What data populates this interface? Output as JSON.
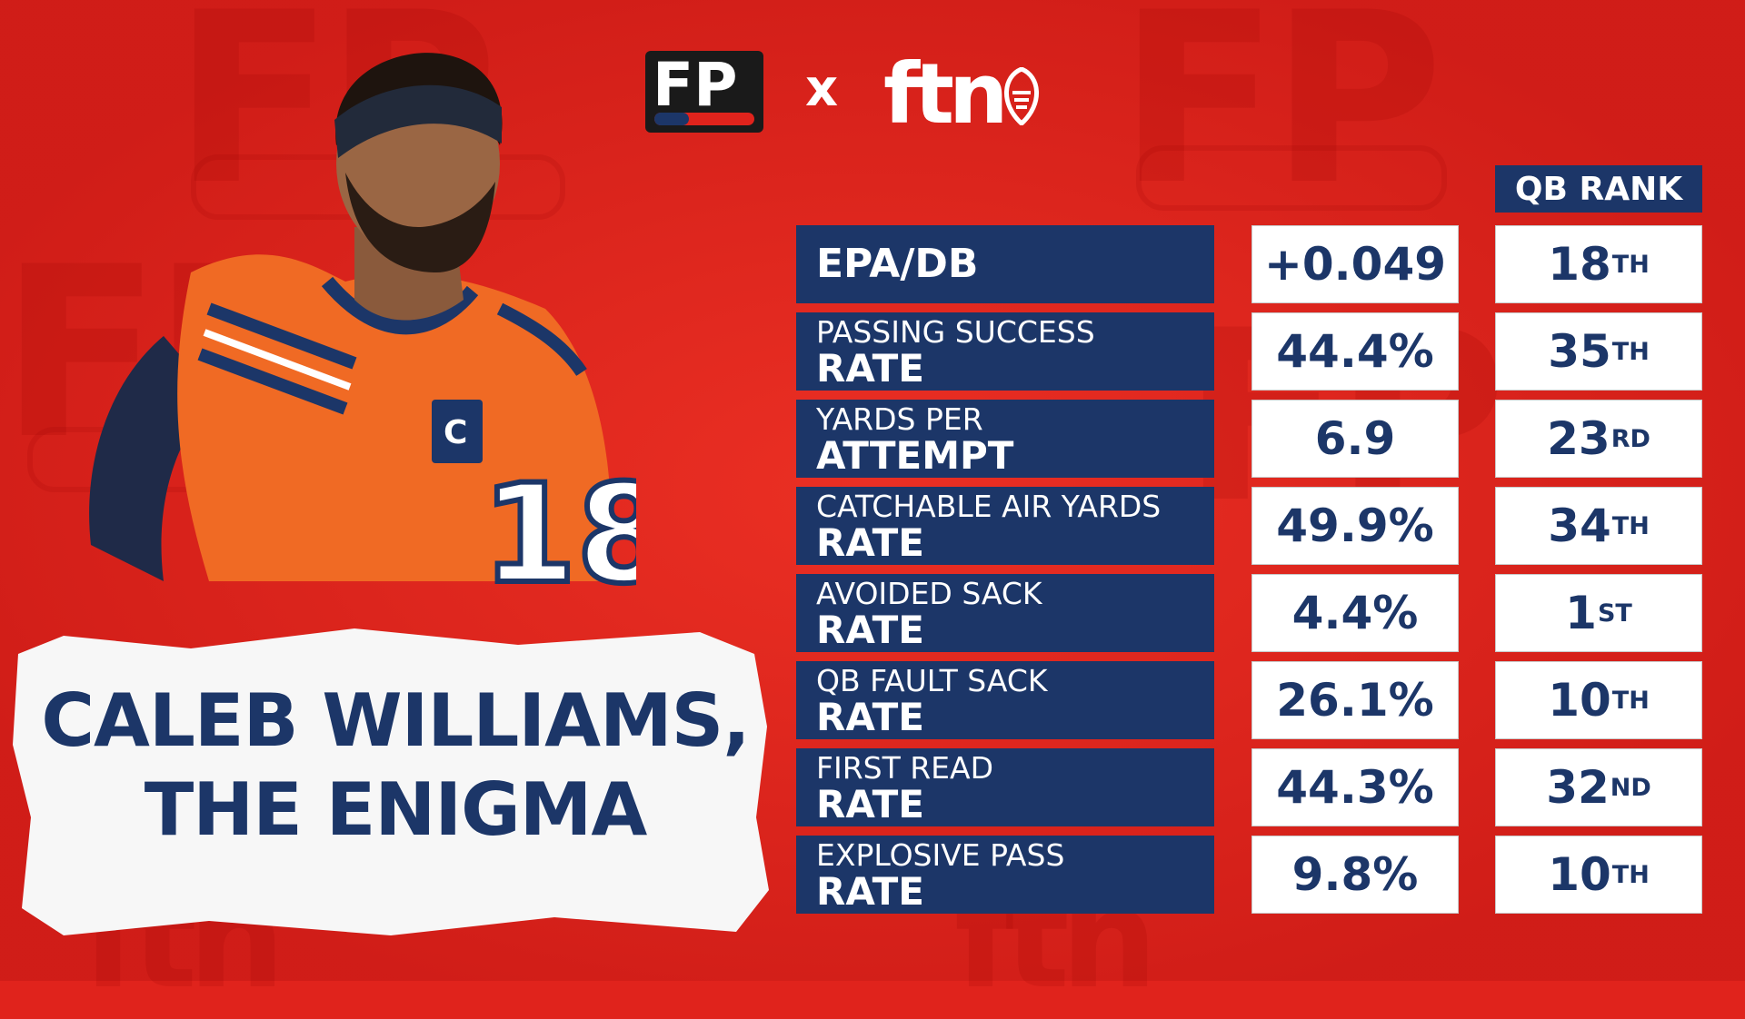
{
  "brand": {
    "fp_logo": "FP",
    "separator": "x",
    "partner_logo": "ftn"
  },
  "title": {
    "line1": "CALEB WILLIAMS,",
    "line2": "THE ENIGMA"
  },
  "table": {
    "rank_header": "QB RANK",
    "rows": [
      {
        "line1": "",
        "line2": "EPA/DB",
        "value": "+0.049",
        "rank": "18",
        "suffix": "TH"
      },
      {
        "line1": "PASSING SUCCESS",
        "line2": "RATE",
        "value": "44.4%",
        "rank": "35",
        "suffix": "TH"
      },
      {
        "line1": "YARDS PER",
        "line2": "ATTEMPT",
        "value": "6.9",
        "rank": "23",
        "suffix": "RD"
      },
      {
        "line1": "CATCHABLE AIR YARDS",
        "line2": "RATE",
        "value": "49.9%",
        "rank": "34",
        "suffix": "TH"
      },
      {
        "line1": "AVOIDED SACK",
        "line2": "RATE",
        "value": "4.4%",
        "rank": "1",
        "suffix": "ST"
      },
      {
        "line1": "QB FAULT SACK",
        "line2": "RATE",
        "value": "26.1%",
        "rank": "10",
        "suffix": "TH"
      },
      {
        "line1": "FIRST READ",
        "line2": "RATE",
        "value": "44.3%",
        "rank": "32",
        "suffix": "ND"
      },
      {
        "line1": "EXPLOSIVE PASS",
        "line2": "RATE",
        "value": "9.8%",
        "rank": "10",
        "suffix": "TH"
      }
    ]
  },
  "colors": {
    "background": "#e0231c",
    "navy": "#1c3668",
    "jersey": "#f06a24"
  }
}
